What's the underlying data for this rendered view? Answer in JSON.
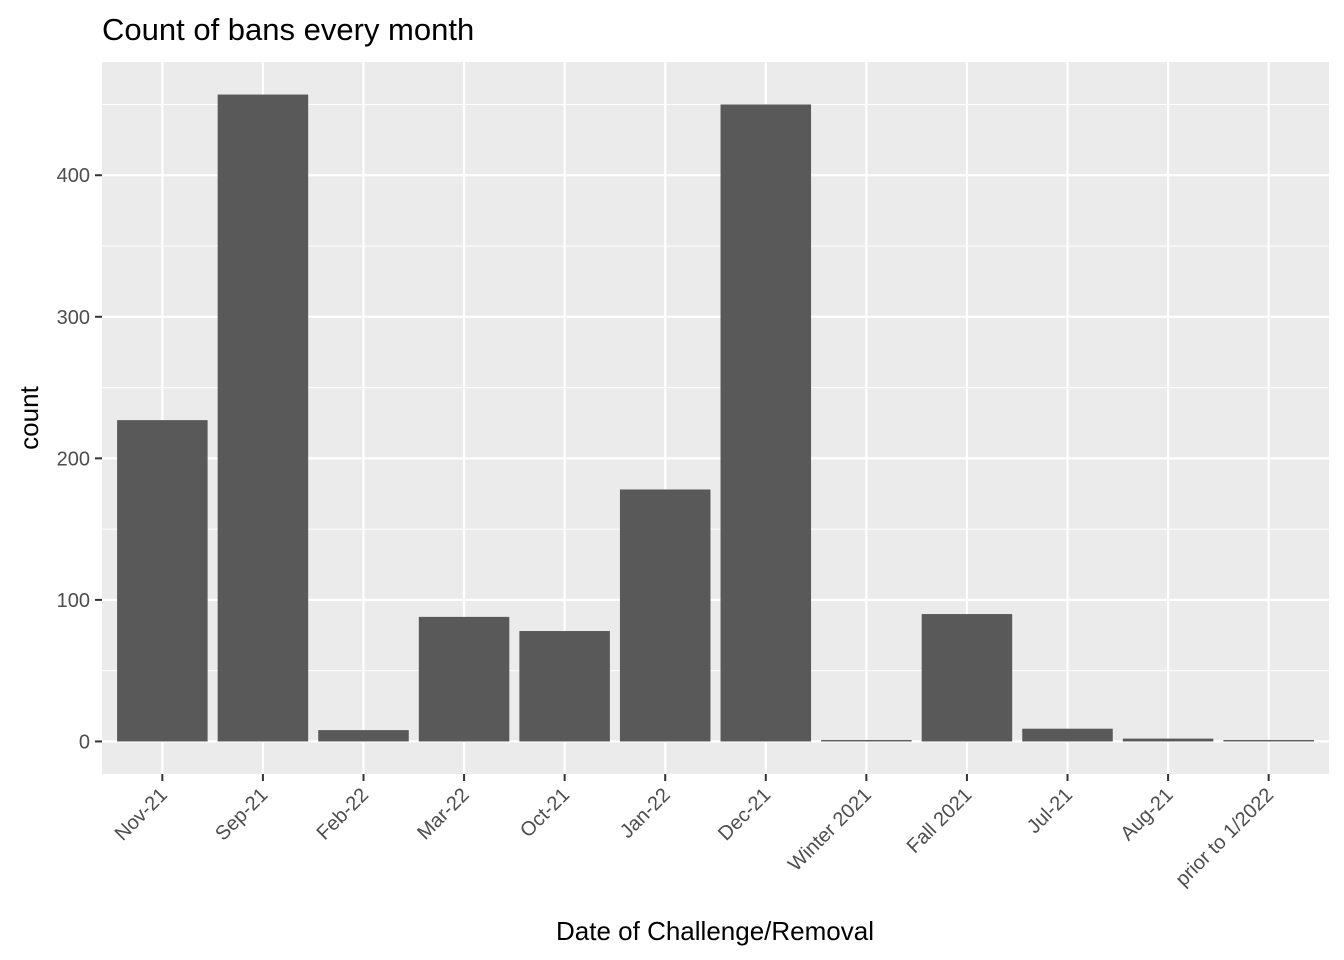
{
  "chart_data": {
    "type": "bar",
    "title": "Count of bans every month",
    "xlabel": "Date of Challenge/Removal",
    "ylabel": "count",
    "categories": [
      "Nov-21",
      "Sep-21",
      "Feb-22",
      "Mar-22",
      "Oct-21",
      "Jan-22",
      "Dec-21",
      "Winter 2021",
      "Fall 2021",
      "Jul-21",
      "Aug-21",
      "prior to 1/2022"
    ],
    "values": [
      227,
      457,
      8,
      88,
      78,
      178,
      450,
      1,
      90,
      9,
      2,
      1
    ],
    "ylim": [
      -23,
      480
    ],
    "yticks": [
      0,
      100,
      200,
      300,
      400
    ],
    "grid": true,
    "legend": "none",
    "colors": {
      "bar": "#595959",
      "panel": "#ebebeb",
      "grid": "#ffffff",
      "tick_text": "#4d4d4d"
    }
  }
}
